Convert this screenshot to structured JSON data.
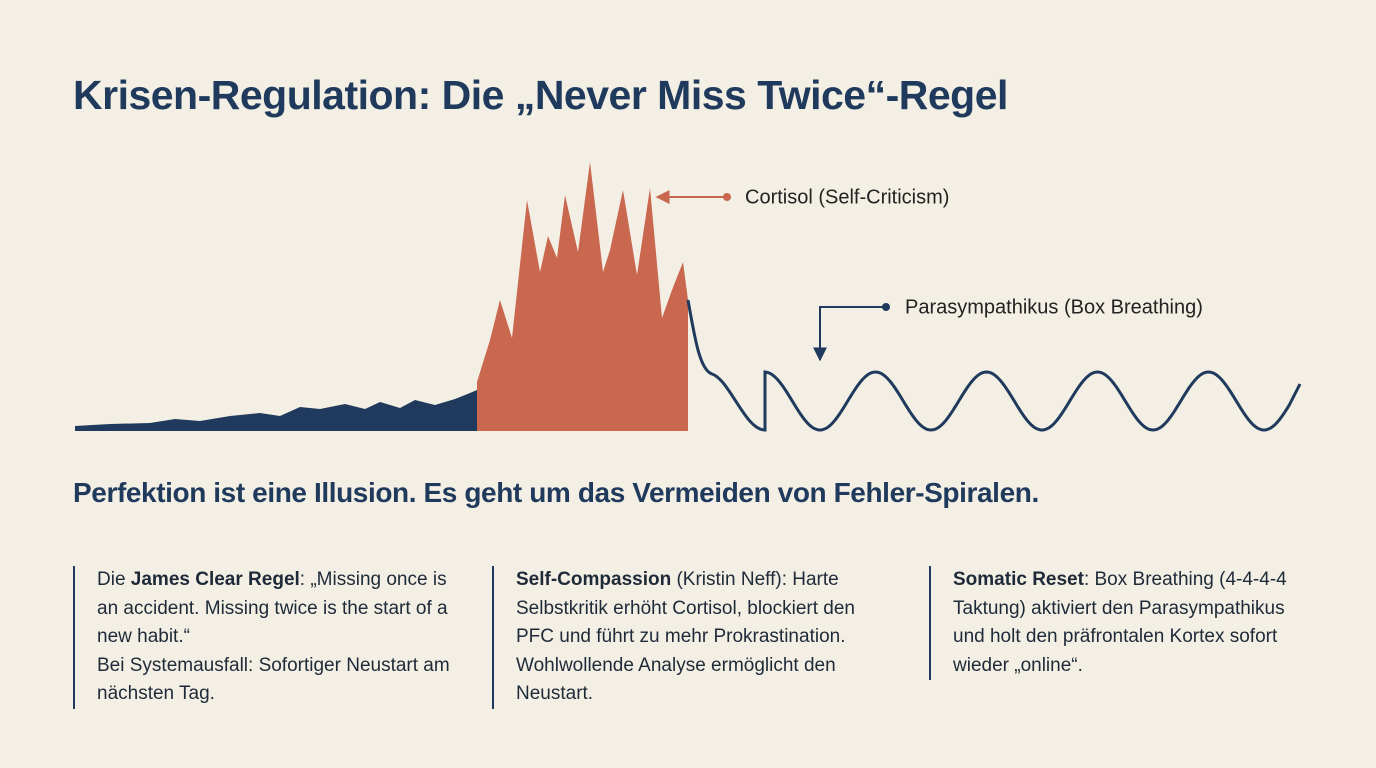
{
  "header": {
    "title": "Krisen-Regulation: Die „Never Miss Twice“-Regel"
  },
  "diagram": {
    "labels": [
      "Cortisol (Self-Criticism)",
      "Parasympathikus (Box Breathing)"
    ]
  },
  "tagline": "Perfektion ist eine Illusion. Es geht um das Vermeiden von Fehler-Spiralen.",
  "columns": [
    {
      "prefix": "Die ",
      "term": "James Clear Regel",
      "body": ": „Missing once is an accident. Missing twice is the start of a new habit.“",
      "note": "Bei Systemausfall: Sofortiger Neustart am nächsten Tag."
    },
    {
      "term": "Self-Compassion",
      "body": " (Kristin Neff): Harte Selbstkritik erhöht Cortisol, blockiert den PFC und führt zu mehr Prokrastination. Wohlwollende Analyse ermöglicht den Neustart."
    },
    {
      "term": "Somatic Reset",
      "body": ": Box Breathing (4-4-4-4 Taktung) aktiviert den Parasympathikus und holt den präfrontalen Kortex sofort wieder „online“."
    }
  ]
}
